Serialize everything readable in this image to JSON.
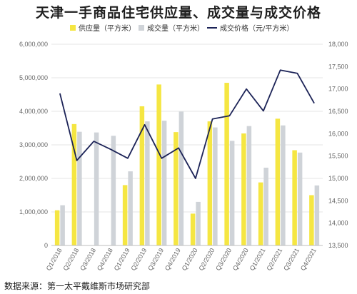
{
  "chart_data": {
    "type": "bar",
    "title": "天津一手商品住宅供应量、成交量与成交价格",
    "categories": [
      "Q1/2018",
      "Q2/2018",
      "Q3/2018",
      "Q4/2018",
      "Q1/2019",
      "Q2/2019",
      "Q3/2019",
      "Q4/2019",
      "Q1/2020",
      "Q2/2020",
      "Q3/2020",
      "Q4/2020",
      "Q1/2021",
      "Q2/2021",
      "Q3/2021",
      "Q4/2021"
    ],
    "series": [
      {
        "name": "供应量（平方米）",
        "type": "bar",
        "axis": "left",
        "color": "#f5e642",
        "values": [
          1050000,
          3620000,
          0,
          0,
          1800000,
          4150000,
          4800000,
          3380000,
          950000,
          3700000,
          4850000,
          3340000,
          1880000,
          3780000,
          2840000,
          1500000
        ]
      },
      {
        "name": "成交量（平方米）",
        "type": "bar",
        "axis": "left",
        "color": "#cfd3d8",
        "values": [
          1200000,
          3390000,
          3370000,
          3270000,
          2210000,
          3700000,
          3720000,
          3990000,
          1300000,
          3520000,
          3120000,
          3560000,
          2320000,
          3580000,
          2770000,
          1790000
        ]
      },
      {
        "name": "成交价格（元/平方米）",
        "type": "line",
        "axis": "right",
        "color": "#1c2357",
        "values": [
          16900,
          15400,
          15830,
          15650,
          15450,
          16200,
          15450,
          15680,
          15000,
          16330,
          16400,
          17000,
          16510,
          17420,
          17350,
          16680
        ]
      }
    ],
    "ylim": [
      0,
      6000000
    ],
    "y_ticks": [
      "0",
      "1,000,000",
      "2,000,000",
      "3,000,000",
      "4,000,000",
      "5,000,000",
      "6,000,000"
    ],
    "y2lim": [
      13500,
      18000
    ],
    "y2_ticks": [
      "13,500",
      "14,000",
      "14,500",
      "15,000",
      "15,500",
      "16,000",
      "16,500",
      "17,000",
      "17,500",
      "18,000"
    ],
    "grid": true,
    "legend_position": "top"
  },
  "source": "数据来源：第一太平戴维斯市场研究部"
}
